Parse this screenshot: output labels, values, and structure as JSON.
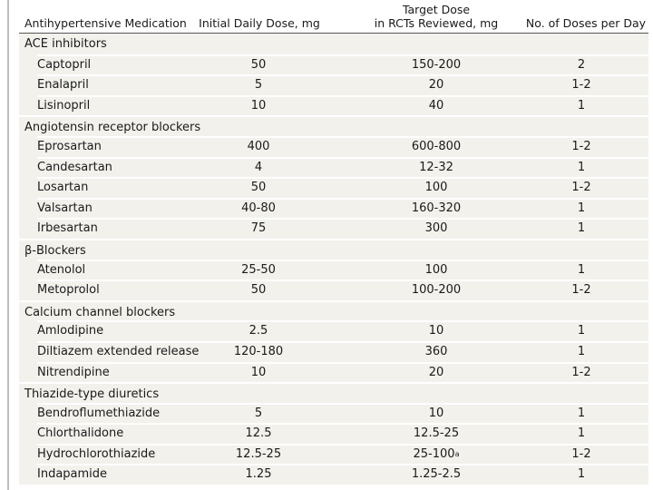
{
  "headers": {
    "medication": "Antihypertensive Medication",
    "initial": "Initial Daily Dose, mg",
    "target_line1": "Target Dose",
    "target_line2": "in RCTs Reviewed, mg",
    "doses": "No. of Doses per Day"
  },
  "groups": [
    {
      "category": "ACE inhibitors",
      "drugs": [
        {
          "name": "Captopril",
          "initial": "50",
          "target": "150-200",
          "doses": "2"
        },
        {
          "name": "Enalapril",
          "initial": "5",
          "target": "20",
          "doses": "1-2"
        },
        {
          "name": "Lisinopril",
          "initial": "10",
          "target": "40",
          "doses": "1"
        }
      ]
    },
    {
      "category": "Angiotensin receptor blockers",
      "drugs": [
        {
          "name": "Eprosartan",
          "initial": "400",
          "target": "600-800",
          "doses": "1-2"
        },
        {
          "name": "Candesartan",
          "initial": "4",
          "target": "12-32",
          "doses": "1"
        },
        {
          "name": "Losartan",
          "initial": "50",
          "target": "100",
          "doses": "1-2"
        },
        {
          "name": "Valsartan",
          "initial": "40-80",
          "target": "160-320",
          "doses": "1"
        },
        {
          "name": "Irbesartan",
          "initial": "75",
          "target": "300",
          "doses": "1"
        }
      ]
    },
    {
      "category": "β-Blockers",
      "drugs": [
        {
          "name": "Atenolol",
          "initial": "25-50",
          "target": "100",
          "doses": "1"
        },
        {
          "name": "Metoprolol",
          "initial": "50",
          "target": "100-200",
          "doses": "1-2"
        }
      ]
    },
    {
      "category": "Calcium channel blockers",
      "drugs": [
        {
          "name": "Amlodipine",
          "initial": "2.5",
          "target": "10",
          "doses": "1"
        },
        {
          "name": "Diltiazem extended release",
          "initial": "120-180",
          "target": "360",
          "doses": "1"
        },
        {
          "name": "Nitrendipine",
          "initial": "10",
          "target": "20",
          "doses": "1-2"
        }
      ]
    },
    {
      "category": "Thiazide-type diuretics",
      "drugs": [
        {
          "name": "Bendroflumethiazide",
          "initial": "5",
          "target": "10",
          "doses": "1"
        },
        {
          "name": "Chlorthalidone",
          "initial": "12.5",
          "target": "12.5-25",
          "doses": "1"
        },
        {
          "name": "Hydrochlorothiazide",
          "initial": "12.5-25",
          "target": "25-100",
          "target_sup": "a",
          "doses": "1-2"
        },
        {
          "name": "Indapamide",
          "initial": "1.25",
          "target": "1.25-2.5",
          "doses": "1"
        }
      ]
    }
  ]
}
